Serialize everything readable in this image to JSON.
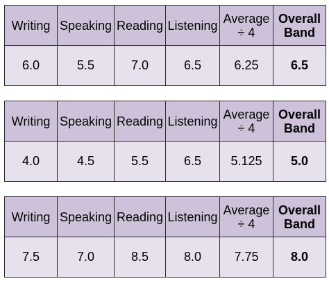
{
  "headers": {
    "writing": "Writing",
    "speaking": "Speaking",
    "reading": "Reading",
    "listening": "Listening",
    "average_line1": "Average",
    "average_line2": "÷ 4",
    "overall_line1": "Overall",
    "overall_line2": "Band"
  },
  "tables": [
    {
      "writing": "6.0",
      "speaking": "5.5",
      "reading": "7.0",
      "listening": "6.5",
      "average": "6.25",
      "overall": "6.5"
    },
    {
      "writing": "4.0",
      "speaking": "4.5",
      "reading": "5.5",
      "listening": "6.5",
      "average": "5.125",
      "overall": "5.0"
    },
    {
      "writing": "7.5",
      "speaking": "7.0",
      "reading": "8.5",
      "listening": "8.0",
      "average": "7.75",
      "overall": "8.0"
    }
  ],
  "colors": {
    "header_background": "#cdc2da",
    "cell_background": "#e6e1ed",
    "border": "#2b2b2b"
  }
}
